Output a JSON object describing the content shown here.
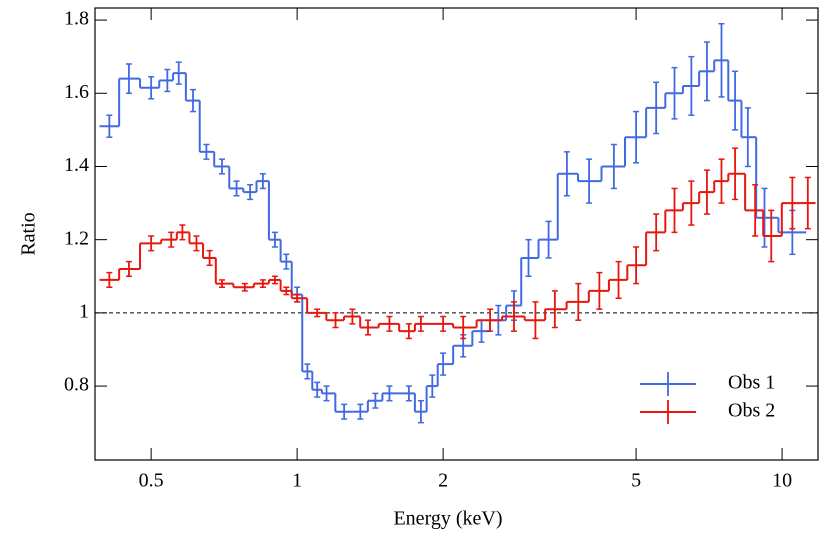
{
  "chart_data": {
    "type": "step-errorbar",
    "x_label": "Energy (keV)",
    "y_label": "Ratio",
    "xscale": "log",
    "xlim": [
      0.383,
      11.86
    ],
    "ylim": [
      0.598,
      1.833
    ],
    "xticks": [
      0.5,
      1,
      2,
      5,
      10
    ],
    "yticks": [
      0.8,
      1,
      1.2,
      1.4,
      1.6,
      1.8
    ],
    "reference_line": 1,
    "legend": "lower-right",
    "series": [
      {
        "name": "Obs 1",
        "color": "#4169e1",
        "x": [
          0.41,
          0.45,
          0.5,
          0.54,
          0.57,
          0.61,
          0.65,
          0.7,
          0.75,
          0.8,
          0.85,
          0.9,
          0.95,
          1.0,
          1.05,
          1.1,
          1.15,
          1.25,
          1.35,
          1.45,
          1.55,
          1.7,
          1.8,
          1.9,
          2.0,
          2.2,
          2.4,
          2.6,
          2.8,
          3.0,
          3.3,
          3.6,
          4.0,
          4.5,
          5.0,
          5.5,
          6.0,
          6.5,
          7.0,
          7.5,
          8.0,
          8.5,
          9.2,
          10.5
        ],
        "values": [
          1.51,
          1.64,
          1.615,
          1.635,
          1.655,
          1.58,
          1.44,
          1.4,
          1.34,
          1.33,
          1.36,
          1.2,
          1.14,
          1.05,
          0.84,
          0.79,
          0.78,
          0.73,
          0.73,
          0.76,
          0.78,
          0.78,
          0.73,
          0.8,
          0.86,
          0.91,
          0.95,
          0.98,
          1.02,
          1.15,
          1.2,
          1.38,
          1.36,
          1.4,
          1.48,
          1.56,
          1.6,
          1.62,
          1.66,
          1.69,
          1.58,
          1.48,
          1.26,
          1.22
        ],
        "errors": [
          0.03,
          0.04,
          0.03,
          0.03,
          0.03,
          0.03,
          0.02,
          0.02,
          0.02,
          0.02,
          0.02,
          0.02,
          0.02,
          0.02,
          0.02,
          0.02,
          0.02,
          0.02,
          0.02,
          0.02,
          0.02,
          0.02,
          0.03,
          0.03,
          0.03,
          0.03,
          0.03,
          0.04,
          0.04,
          0.05,
          0.05,
          0.06,
          0.06,
          0.06,
          0.07,
          0.07,
          0.07,
          0.08,
          0.08,
          0.1,
          0.08,
          0.08,
          0.08,
          0.06
        ]
      },
      {
        "name": "Obs 2",
        "color": "#e8160c",
        "x": [
          0.41,
          0.45,
          0.5,
          0.55,
          0.58,
          0.62,
          0.66,
          0.7,
          0.78,
          0.85,
          0.9,
          0.95,
          1.0,
          1.1,
          1.2,
          1.3,
          1.4,
          1.55,
          1.7,
          1.8,
          2.0,
          2.2,
          2.5,
          2.8,
          3.1,
          3.4,
          3.8,
          4.2,
          4.6,
          5.0,
          5.5,
          6.0,
          6.5,
          7.0,
          7.5,
          8.0,
          8.8,
          9.5,
          10.5,
          11.3
        ],
        "values": [
          1.09,
          1.12,
          1.19,
          1.2,
          1.22,
          1.19,
          1.15,
          1.08,
          1.07,
          1.08,
          1.09,
          1.06,
          1.04,
          1.0,
          0.98,
          0.99,
          0.96,
          0.97,
          0.95,
          0.97,
          0.97,
          0.96,
          0.98,
          0.99,
          0.98,
          1.01,
          1.03,
          1.06,
          1.09,
          1.13,
          1.22,
          1.28,
          1.3,
          1.33,
          1.36,
          1.38,
          1.28,
          1.21,
          1.3,
          1.3
        ],
        "errors": [
          0.02,
          0.02,
          0.02,
          0.02,
          0.02,
          0.02,
          0.02,
          0.01,
          0.01,
          0.01,
          0.01,
          0.01,
          0.01,
          0.01,
          0.02,
          0.02,
          0.02,
          0.02,
          0.02,
          0.02,
          0.02,
          0.03,
          0.03,
          0.04,
          0.05,
          0.05,
          0.05,
          0.05,
          0.05,
          0.05,
          0.05,
          0.06,
          0.06,
          0.06,
          0.06,
          0.07,
          0.07,
          0.07,
          0.07,
          0.07
        ]
      }
    ]
  }
}
